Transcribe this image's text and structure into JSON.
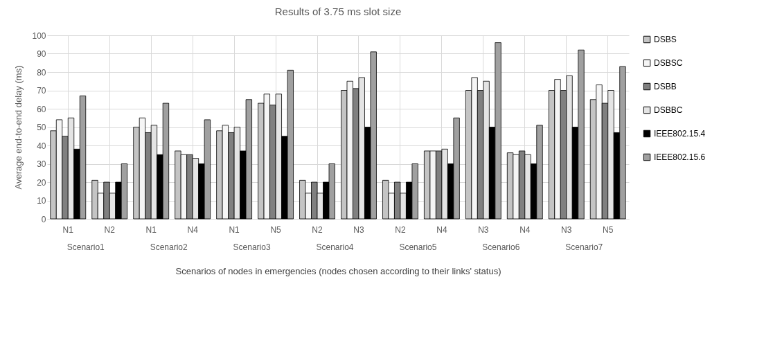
{
  "chart_data": {
    "type": "bar",
    "title": "Results of 3.75 ms slot size",
    "xlabel": "Scenarios of nodes in emergencies (nodes chosen according to their links' status)",
    "ylabel": "Average end-to-end delay (ms)",
    "categories": [
      "N1",
      "N2",
      "N1",
      "N4",
      "N1",
      "N5",
      "N2",
      "N3",
      "N2",
      "N4",
      "N3",
      "N4",
      "N3",
      "N5"
    ],
    "annotations": [
      "Scenario1",
      "Scenario2",
      "Scenario3",
      "Scenario4",
      "Scenario5",
      "Scenario6",
      "Scenario7"
    ],
    "series": [
      {
        "name": "DSBS",
        "color": "#c4c4c4",
        "values": [
          48,
          21,
          50,
          37,
          48,
          63,
          21,
          70,
          21,
          37,
          70,
          36,
          70,
          65
        ]
      },
      {
        "name": "DSBSC",
        "color": "#f5f5f5",
        "values": [
          54,
          14,
          55,
          35,
          51,
          68,
          14,
          75,
          14,
          37,
          77,
          35,
          76,
          73
        ]
      },
      {
        "name": "DSBB",
        "color": "#808080",
        "values": [
          45,
          20,
          47,
          35,
          47,
          62,
          20,
          71,
          20,
          37,
          70,
          37,
          70,
          63
        ]
      },
      {
        "name": "DSBBC",
        "color": "#e4e4e4",
        "values": [
          55,
          14,
          51,
          33,
          50,
          68,
          14,
          77,
          14,
          38,
          75,
          35,
          78,
          70
        ]
      },
      {
        "name": "IEEE802.15.4",
        "color": "#000000",
        "values": [
          38,
          20,
          35,
          30,
          37,
          45,
          20,
          50,
          20,
          30,
          50,
          30,
          50,
          47
        ]
      },
      {
        "name": "IEEE802.15.6",
        "color": "#a0a0a0",
        "values": [
          67,
          30,
          63,
          54,
          65,
          81,
          30,
          91,
          30,
          55,
          96,
          51,
          92,
          83
        ]
      }
    ],
    "ylim": [
      0,
      100
    ],
    "yticks": [
      0,
      10,
      20,
      30,
      40,
      50,
      60,
      70,
      80,
      90,
      100
    ],
    "grid": true,
    "legend": "right"
  }
}
